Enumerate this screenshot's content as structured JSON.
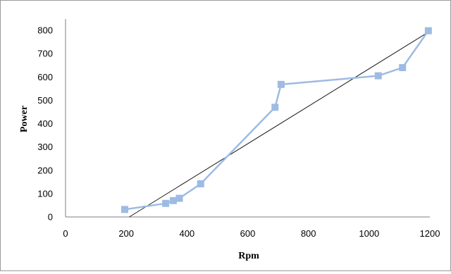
{
  "chart_data": {
    "type": "scatter",
    "title": "",
    "xlabel": "Rpm",
    "ylabel": "Power",
    "xlim": [
      0,
      1200
    ],
    "ylim": [
      0,
      800
    ],
    "xticks": [
      0,
      200,
      400,
      600,
      800,
      1000,
      1200
    ],
    "yticks": [
      0,
      100,
      200,
      300,
      400,
      500,
      600,
      700,
      800
    ],
    "grid": false,
    "legend": "none",
    "series": [
      {
        "style": "line-with-square-markers",
        "color": "#9dbbe3",
        "x": [
          195,
          330,
          355,
          375,
          445,
          690,
          710,
          1030,
          1110,
          1195
        ],
        "y": [
          32,
          58,
          70,
          80,
          142,
          470,
          568,
          605,
          640,
          798
        ]
      }
    ],
    "trendline": {
      "type": "linear",
      "color": "#1a1a1a",
      "x": [
        210,
        1190
      ],
      "y": [
        0,
        788
      ]
    }
  }
}
